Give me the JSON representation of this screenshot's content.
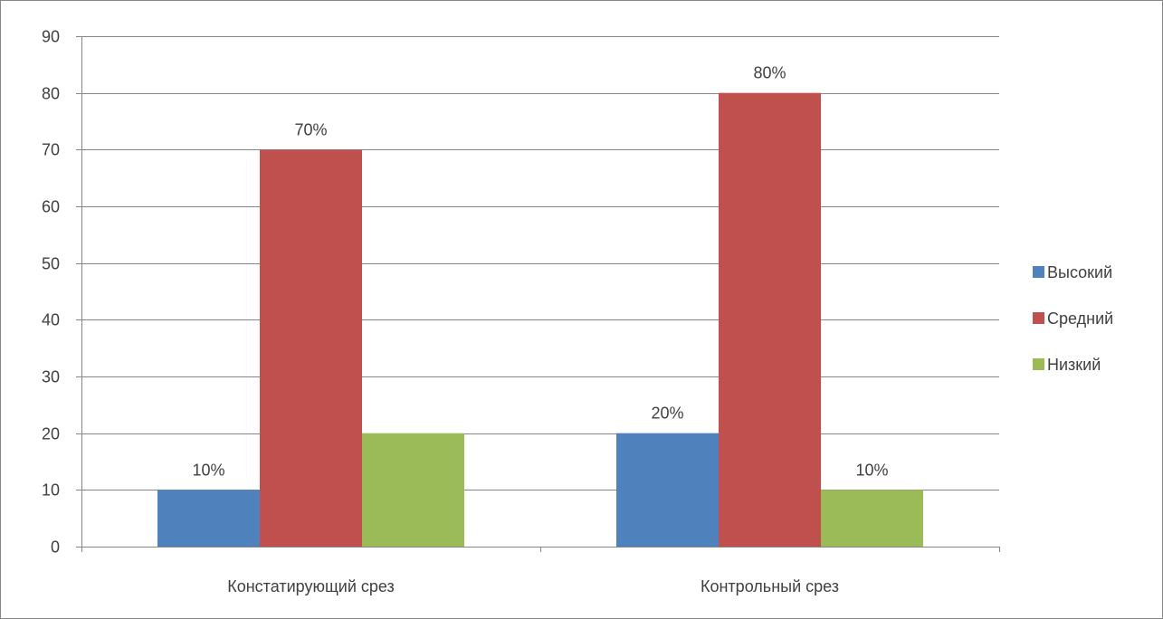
{
  "chart_data": {
    "type": "bar",
    "categories": [
      "Констатирующий срез",
      "Контрольный срез"
    ],
    "series": [
      {
        "name": "Высокий",
        "values": [
          10,
          20
        ],
        "labels": [
          "10%",
          "20%"
        ],
        "color": "#4F81BD"
      },
      {
        "name": "Средний",
        "values": [
          70,
          80
        ],
        "labels": [
          "70%",
          "80%"
        ],
        "color": "#C0504D"
      },
      {
        "name": "Низкий",
        "values": [
          20,
          10
        ],
        "labels": [
          "",
          "10%"
        ],
        "color": "#9BBB59"
      }
    ],
    "ylim": [
      0,
      90
    ],
    "yticks": [
      "0",
      "10",
      "20",
      "30",
      "40",
      "50",
      "60",
      "70",
      "80",
      "90"
    ],
    "grid": true,
    "legend_position": "right",
    "title": "",
    "xlabel": "",
    "ylabel": ""
  }
}
